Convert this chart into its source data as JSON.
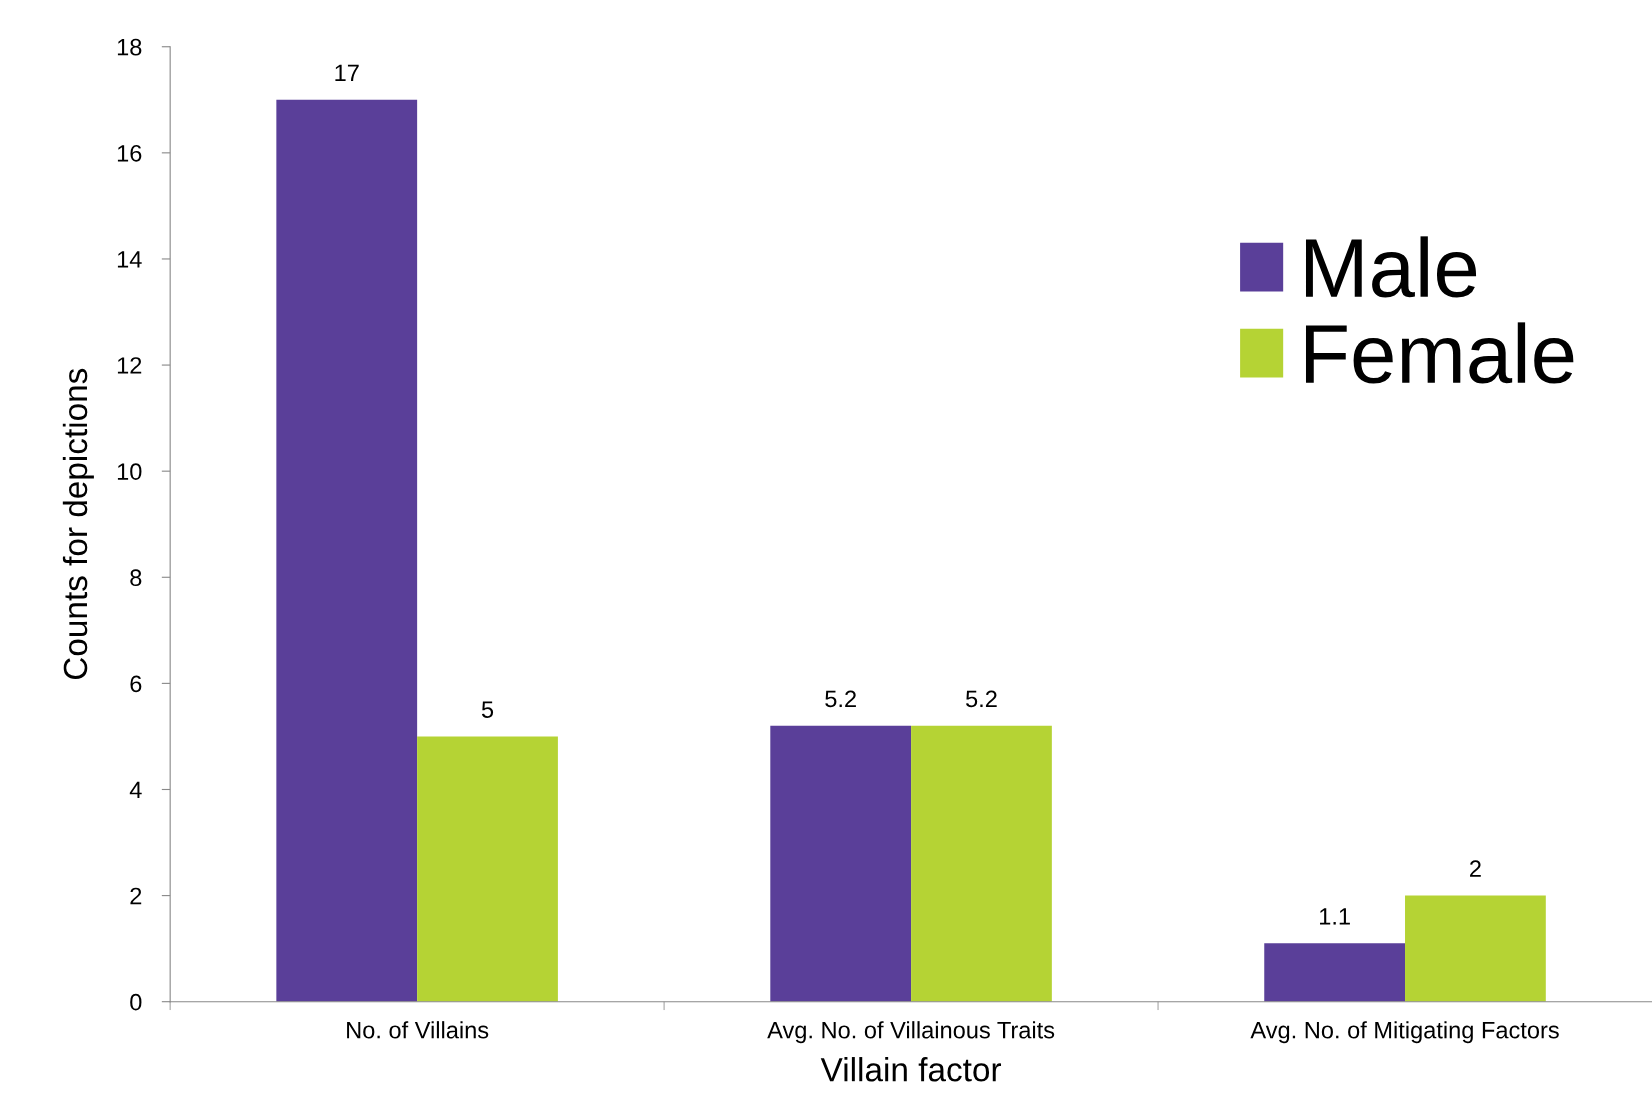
{
  "chart_data": {
    "type": "bar",
    "xlabel": "Villain factor",
    "ylabel": "Counts for depictions",
    "categories": [
      "No. of Villains",
      "Avg. No. of Villainous Traits",
      "Avg. No. of Mitigating Factors"
    ],
    "series": [
      {
        "name": "Male",
        "color": "#5a3f99",
        "values": [
          17,
          5.2,
          1.1
        ]
      },
      {
        "name": "Female",
        "color": "#b5d334",
        "values": [
          5,
          5.2,
          2
        ]
      }
    ],
    "ylim": [
      0,
      18
    ],
    "yticks": [
      0,
      2,
      4,
      6,
      8,
      10,
      12,
      14,
      16,
      18
    ],
    "grid": false,
    "legend": "top right",
    "data_labels": true
  }
}
